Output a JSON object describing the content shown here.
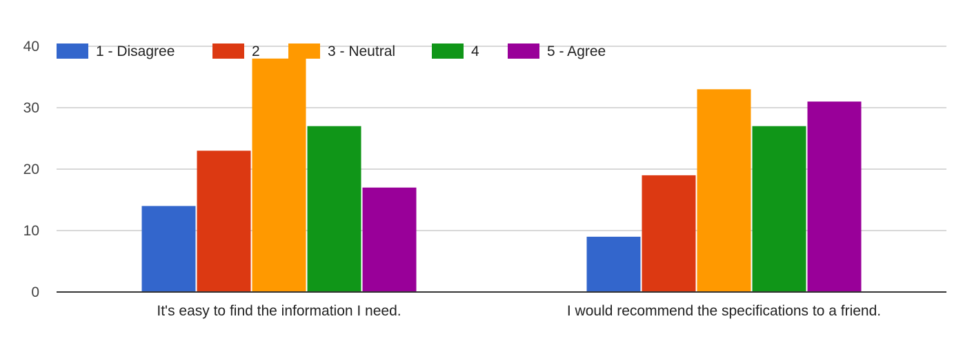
{
  "chart_data": {
    "type": "bar",
    "title": "",
    "xlabel": "",
    "ylabel": "",
    "ylim": [
      0,
      40
    ],
    "yticks": [
      0,
      10,
      20,
      30,
      40
    ],
    "grid": true,
    "legend_position": "top-left",
    "categories": [
      "It's easy to find the information I need.",
      "I would recommend the specifications to a friend."
    ],
    "series": [
      {
        "name": "1 - Disagree",
        "color": "#3366cc",
        "values": [
          14,
          9
        ]
      },
      {
        "name": "2",
        "color": "#dc3912",
        "values": [
          23,
          19
        ]
      },
      {
        "name": "3 - Neutral",
        "color": "#ff9900",
        "values": [
          38,
          33
        ]
      },
      {
        "name": "4",
        "color": "#109618",
        "values": [
          27,
          27
        ]
      },
      {
        "name": "5 - Agree",
        "color": "#990099",
        "values": [
          17,
          31
        ]
      }
    ]
  }
}
